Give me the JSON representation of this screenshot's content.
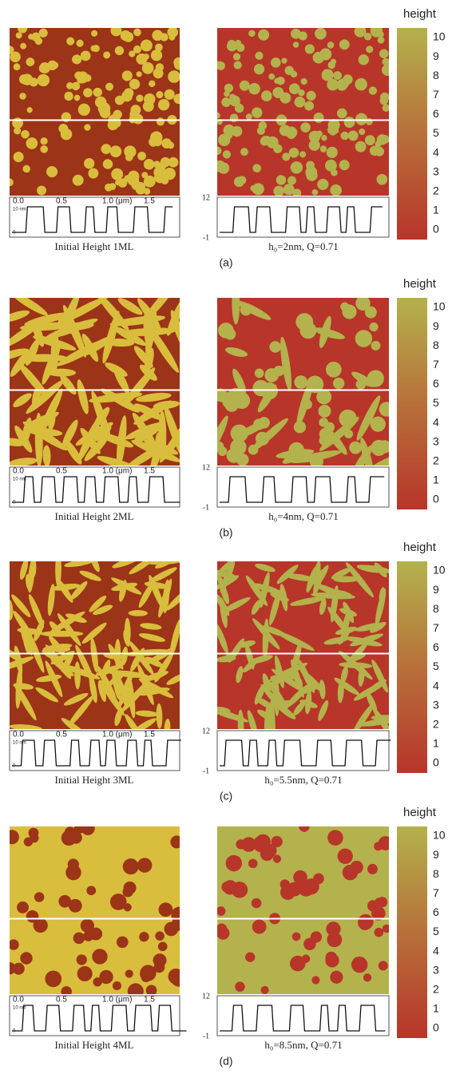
{
  "panels": [
    {
      "label": "(a)",
      "experiment": {
        "caption": "Initial Height 1ML",
        "profile_ticks": [
          "0.0",
          "0.5",
          "1.0 (μm)",
          "1.5"
        ],
        "profile_scale": "10 nm",
        "profile_zero": "0"
      },
      "simulation": {
        "caption": "h₀=2nm, Q=0.71",
        "scale_top": "12",
        "scale_bottom": "-1"
      },
      "colorbar": {
        "title": "height",
        "ticks": [
          0,
          1,
          2,
          3,
          4,
          5,
          6,
          7,
          8,
          9,
          10
        ]
      }
    },
    {
      "label": "(b)",
      "experiment": {
        "caption": "Initial Height 2ML",
        "profile_ticks": [
          "0.0",
          "0.5",
          "1.0 (μm)",
          "1.5"
        ],
        "profile_scale": "10 nm",
        "profile_zero": "0"
      },
      "simulation": {
        "caption": "h₀=4nm, Q=0.71",
        "scale_top": "12",
        "scale_bottom": "-1"
      },
      "colorbar": {
        "title": "height",
        "ticks": [
          0,
          1,
          2,
          3,
          4,
          5,
          6,
          7,
          8,
          9,
          10
        ]
      }
    },
    {
      "label": "(c)",
      "experiment": {
        "caption": "Initial Height 3ML",
        "profile_ticks": [
          "0.0",
          "0.5",
          "1.0 (μm)",
          "1.5"
        ],
        "profile_scale": "10 nm",
        "profile_zero": "0"
      },
      "simulation": {
        "caption": "h₀=5.5nm, Q=0.71",
        "scale_top": "12",
        "scale_bottom": "-1"
      },
      "colorbar": {
        "title": "height",
        "ticks": [
          0,
          1,
          2,
          3,
          4,
          5,
          6,
          7,
          8,
          9,
          10
        ]
      }
    },
    {
      "label": "(d)",
      "experiment": {
        "caption": "Initial Height 4ML",
        "profile_ticks": [
          "0.0",
          "0.5",
          "1.0 (μm)",
          "1.5"
        ],
        "profile_scale": "10 nm",
        "profile_zero": "0"
      },
      "simulation": {
        "caption": "h₀=8.5nm, Q=0.71",
        "scale_top": "12",
        "scale_bottom": "-1"
      },
      "colorbar": {
        "title": "height",
        "ticks": [
          0,
          1,
          2,
          3,
          4,
          5,
          6,
          7,
          8,
          9,
          10
        ]
      }
    }
  ]
}
